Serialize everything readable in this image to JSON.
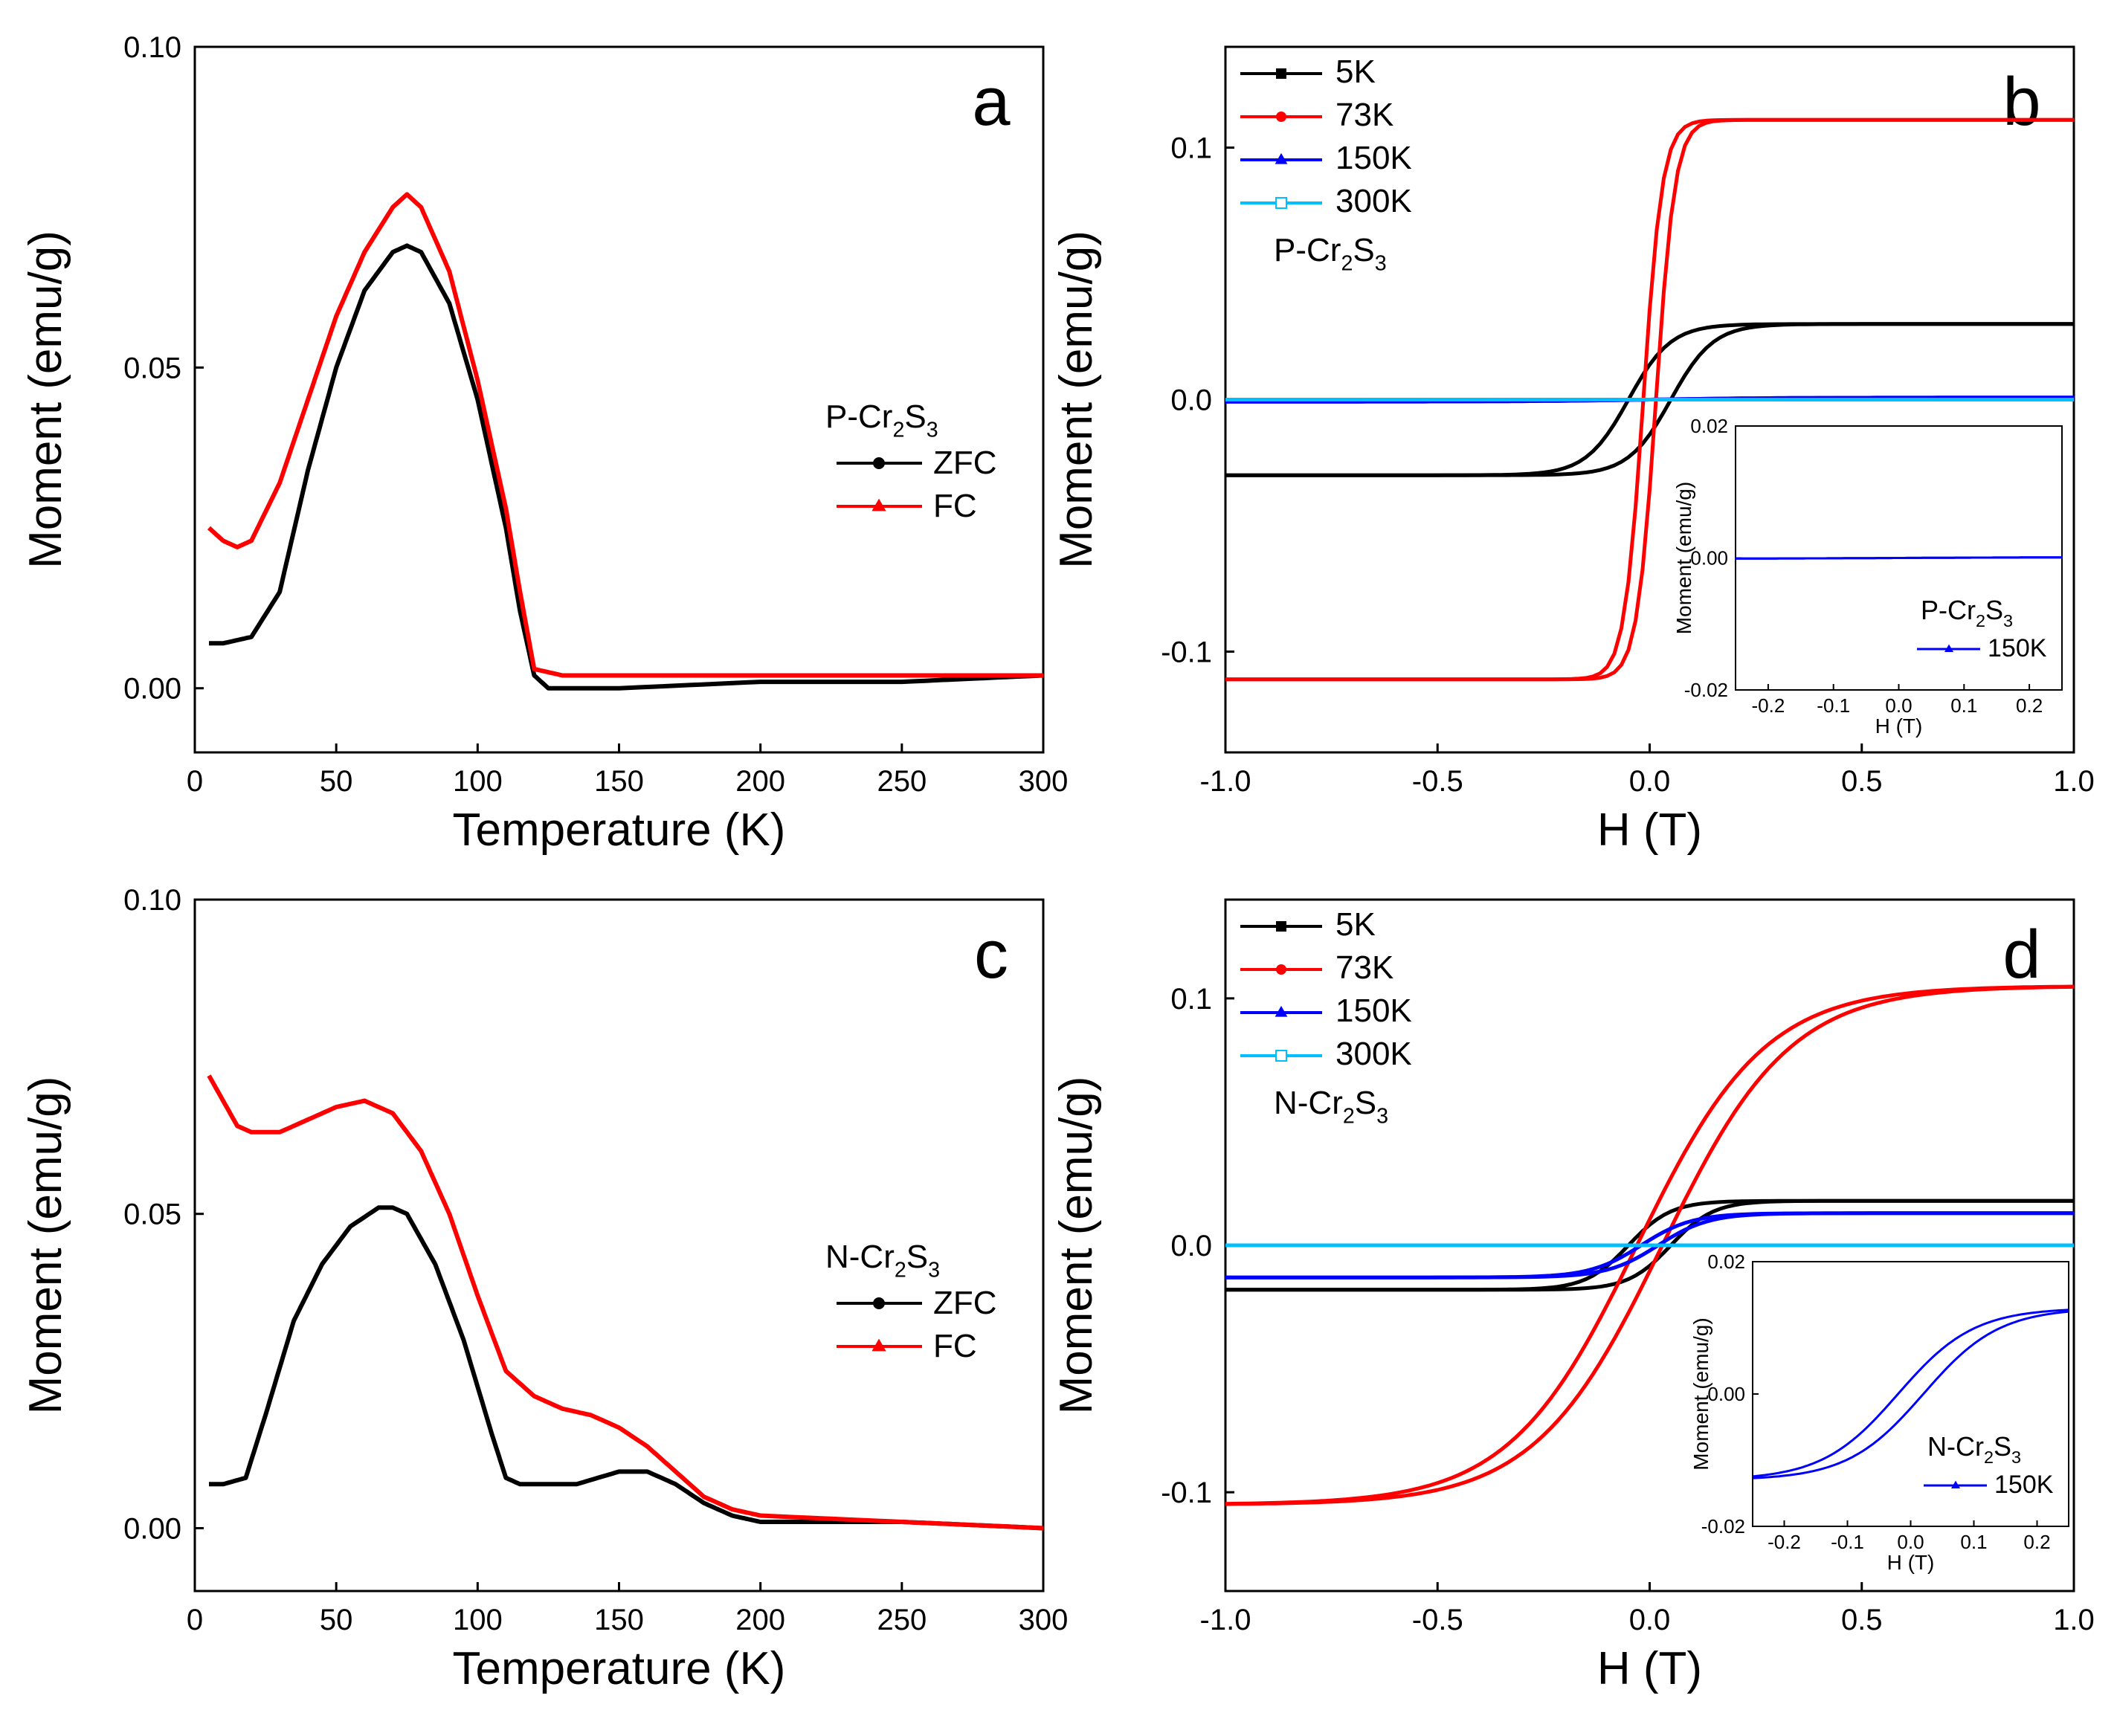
{
  "chart_data": [
    {
      "panel": "a",
      "type": "line",
      "xlabel": "Temperature (K)",
      "ylabel": "Moment (emu/g)",
      "xlim": [
        0,
        300
      ],
      "ylim": [
        -0.01,
        0.1
      ],
      "xticks": [
        0,
        50,
        100,
        150,
        200,
        250,
        300
      ],
      "yticks": [
        0.0,
        0.05,
        0.1
      ],
      "xtick_labels": [
        "0",
        "50",
        "100",
        "150",
        "200",
        "250",
        "300"
      ],
      "ytick_labels": [
        "0.00",
        "0.05",
        "0.10"
      ],
      "legend_title": "P-Cr2S3",
      "legend_title_parts": [
        "P-Cr",
        "2",
        "S",
        "3"
      ],
      "series": [
        {
          "name": "ZFC",
          "color": "#000000",
          "marker": "circle",
          "x": [
            5,
            10,
            20,
            30,
            40,
            50,
            60,
            70,
            75,
            80,
            90,
            100,
            110,
            115,
            120,
            125,
            130,
            150,
            200,
            250,
            300
          ],
          "y": [
            0.007,
            0.007,
            0.008,
            0.015,
            0.034,
            0.05,
            0.062,
            0.068,
            0.069,
            0.068,
            0.06,
            0.045,
            0.025,
            0.012,
            0.002,
            0.0,
            0.0,
            0.0,
            0.001,
            0.001,
            0.002
          ]
        },
        {
          "name": "FC",
          "color": "#ff0000",
          "marker": "triangle",
          "x": [
            5,
            10,
            15,
            20,
            30,
            40,
            50,
            60,
            70,
            75,
            80,
            90,
            100,
            110,
            115,
            120,
            130,
            150,
            200,
            250,
            300
          ],
          "y": [
            0.025,
            0.023,
            0.022,
            0.023,
            0.032,
            0.045,
            0.058,
            0.068,
            0.075,
            0.077,
            0.075,
            0.065,
            0.048,
            0.028,
            0.015,
            0.003,
            0.002,
            0.002,
            0.002,
            0.002,
            0.002
          ]
        }
      ]
    },
    {
      "panel": "b",
      "type": "line",
      "xlabel": "H (T)",
      "ylabel": "Moment (emu/g)",
      "xlim": [
        -1.0,
        1.0
      ],
      "ylim": [
        -0.14,
        0.14
      ],
      "xticks": [
        -1.0,
        -0.5,
        0.0,
        0.5,
        1.0
      ],
      "yticks": [
        -0.1,
        0.0,
        0.1
      ],
      "xtick_labels": [
        "-1.0",
        "-0.5",
        "0.0",
        "0.5",
        "1.0"
      ],
      "ytick_labels": [
        "-0.1",
        "0.0",
        "0.1"
      ],
      "legend_title": "P-Cr2S3",
      "legend_title_parts": [
        "P-Cr",
        "2",
        "S",
        "3"
      ],
      "series": [
        {
          "name": "5K",
          "color": "#000000",
          "marker": "square",
          "hysteresis": {
            "ms": 0.03,
            "hc": 0.05,
            "width": 0.1
          }
        },
        {
          "name": "73K",
          "color": "#ff0000",
          "marker": "circle",
          "hysteresis": {
            "ms": 0.111,
            "hc": 0.015,
            "width": 0.045
          }
        },
        {
          "name": "150K",
          "color": "#0000ff",
          "marker": "triangle",
          "hysteresis": {
            "ms": 0.0008,
            "hc": 0.0,
            "width": 0.3
          }
        },
        {
          "name": "300K",
          "color": "#00bfff",
          "marker": "open-square",
          "hysteresis": {
            "ms": 0.0,
            "hc": 0.0,
            "width": 0.3
          }
        }
      ],
      "inset": {
        "xlabel": "H (T)",
        "ylabel": "Moment (emu/g)",
        "xlim": [
          -0.25,
          0.25
        ],
        "ylim": [
          -0.02,
          0.02
        ],
        "xticks": [
          -0.2,
          -0.1,
          0.0,
          0.1,
          0.2
        ],
        "yticks": [
          -0.02,
          0.0,
          0.02
        ],
        "xtick_labels": [
          "-0.2",
          "-0.1",
          "0.0",
          "0.1",
          "0.2"
        ],
        "ytick_labels": [
          "-0.02",
          "0.00",
          "0.02"
        ],
        "label": "P-Cr2S3",
        "label_parts": [
          "P-Cr",
          "2",
          "S",
          "3"
        ],
        "series": {
          "name": "150K",
          "color": "#0000ff",
          "hysteresis": {
            "ms": 0.0001,
            "hc": 0.0,
            "width": 0.2
          }
        }
      }
    },
    {
      "panel": "c",
      "type": "line",
      "xlabel": "Temperature (K)",
      "ylabel": "Moment (emu/g)",
      "xlim": [
        0,
        300
      ],
      "ylim": [
        -0.01,
        0.1
      ],
      "xticks": [
        0,
        50,
        100,
        150,
        200,
        250,
        300
      ],
      "yticks": [
        0.0,
        0.05,
        0.1
      ],
      "xtick_labels": [
        "0",
        "50",
        "100",
        "150",
        "200",
        "250",
        "300"
      ],
      "ytick_labels": [
        "0.00",
        "0.05",
        "0.10"
      ],
      "legend_title": "N-Cr2S3",
      "legend_title_parts": [
        "N-Cr",
        "2",
        "S",
        "3"
      ],
      "series": [
        {
          "name": "ZFC",
          "color": "#000000",
          "marker": "circle",
          "x": [
            5,
            10,
            18,
            25,
            35,
            45,
            55,
            65,
            70,
            75,
            85,
            95,
            105,
            110,
            115,
            120,
            135,
            150,
            160,
            170,
            180,
            190,
            200,
            250,
            300
          ],
          "y": [
            0.007,
            0.007,
            0.008,
            0.018,
            0.033,
            0.042,
            0.048,
            0.051,
            0.051,
            0.05,
            0.042,
            0.03,
            0.015,
            0.008,
            0.007,
            0.007,
            0.007,
            0.009,
            0.009,
            0.007,
            0.004,
            0.002,
            0.001,
            0.001,
            0.0
          ]
        },
        {
          "name": "FC",
          "color": "#ff0000",
          "marker": "triangle",
          "x": [
            5,
            10,
            15,
            20,
            30,
            40,
            50,
            60,
            70,
            80,
            90,
            100,
            110,
            120,
            130,
            140,
            150,
            160,
            170,
            180,
            190,
            200,
            250,
            300
          ],
          "y": [
            0.072,
            0.068,
            0.064,
            0.063,
            0.063,
            0.065,
            0.067,
            0.068,
            0.066,
            0.06,
            0.05,
            0.037,
            0.025,
            0.021,
            0.019,
            0.018,
            0.016,
            0.013,
            0.009,
            0.005,
            0.003,
            0.002,
            0.001,
            0.0
          ]
        }
      ]
    },
    {
      "panel": "d",
      "type": "line",
      "xlabel": "H (T)",
      "ylabel": "Moment (emu/g)",
      "xlim": [
        -1.0,
        1.0
      ],
      "ylim": [
        -0.14,
        0.14
      ],
      "xticks": [
        -1.0,
        -0.5,
        0.0,
        0.5,
        1.0
      ],
      "yticks": [
        -0.1,
        0.0,
        0.1
      ],
      "xtick_labels": [
        "-1.0",
        "-0.5",
        "0.0",
        "0.5",
        "1.0"
      ],
      "ytick_labels": [
        "-0.1",
        "0.0",
        "0.1"
      ],
      "legend_title": "N-Cr2S3",
      "legend_title_parts": [
        "N-Cr",
        "2",
        "S",
        "3"
      ],
      "series": [
        {
          "name": "5K",
          "color": "#000000",
          "marker": "square",
          "hysteresis": {
            "ms": 0.018,
            "hc": 0.05,
            "width": 0.1
          }
        },
        {
          "name": "73K",
          "color": "#ff0000",
          "marker": "circle",
          "hysteresis": {
            "ms": 0.105,
            "hc": 0.03,
            "width": 0.3
          }
        },
        {
          "name": "150K",
          "color": "#0000ff",
          "marker": "triangle",
          "hysteresis": {
            "ms": 0.013,
            "hc": 0.02,
            "width": 0.12
          }
        },
        {
          "name": "300K",
          "color": "#00bfff",
          "marker": "open-square",
          "hysteresis": {
            "ms": 0.0,
            "hc": 0.0,
            "width": 0.3
          }
        }
      ],
      "inset": {
        "xlabel": "H (T)",
        "ylabel": "Moment (emu/g)",
        "xlim": [
          -0.25,
          0.25
        ],
        "ylim": [
          -0.02,
          0.02
        ],
        "xticks": [
          -0.2,
          -0.1,
          0.0,
          0.1,
          0.2
        ],
        "yticks": [
          -0.02,
          0.0,
          0.02
        ],
        "xtick_labels": [
          "-0.2",
          "-0.1",
          "0.0",
          "0.1",
          "0.2"
        ],
        "ytick_labels": [
          "-0.02",
          "0.00",
          "0.02"
        ],
        "label": "N-Cr2S3",
        "label_parts": [
          "N-Cr",
          "2",
          "S",
          "3"
        ],
        "series": {
          "name": "150K",
          "color": "#0000ff",
          "hysteresis": {
            "ms": 0.013,
            "hc": 0.02,
            "width": 0.12
          }
        }
      }
    }
  ]
}
